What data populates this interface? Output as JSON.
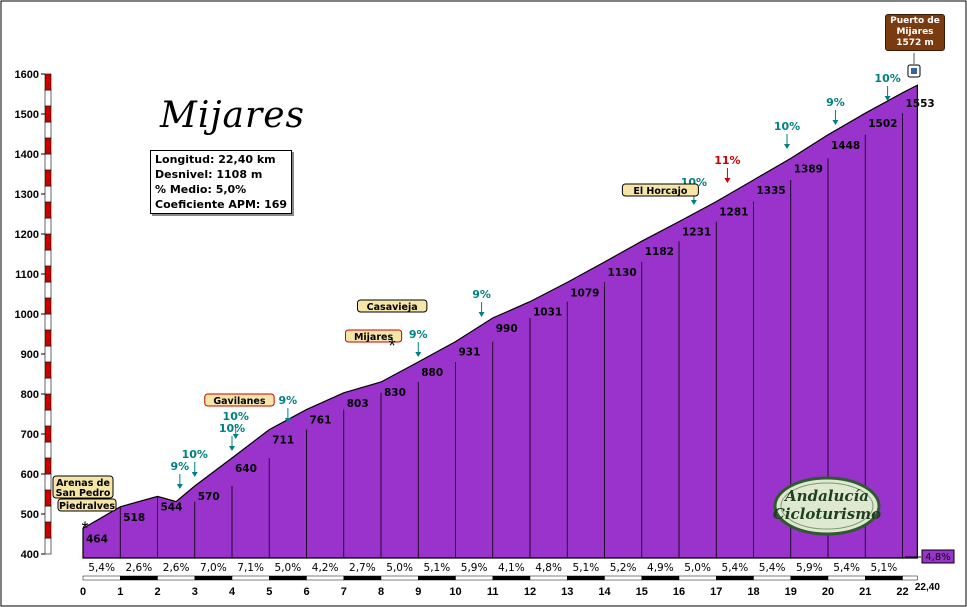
{
  "title": "Mijares",
  "info": {
    "longitud": "Longitud: 22,40 km",
    "desnivel": "Desnivel: 1108 m",
    "medio": "% Medio: 5,0%",
    "coef": "Coeficiente APM: 169"
  },
  "logo": {
    "line1": "Andalucía",
    "line2": "Cicloturismo"
  },
  "summit": {
    "line1": "Puerto de",
    "line2": "Mijares",
    "line3": "1572 m"
  },
  "colors": {
    "profile": "#9933cc",
    "axis_red": "#cc0000",
    "label_green": "#008080",
    "label_red": "#cc0000",
    "place_fill": "#f5e6a8",
    "summit_fill": "#7a3b10"
  },
  "chart_data": {
    "type": "area",
    "xlabel": "",
    "ylabel": "",
    "xlim": [
      0,
      22.4
    ],
    "ylim": [
      400,
      1600
    ],
    "x_ticks": [
      "0",
      "1",
      "2",
      "3",
      "4",
      "5",
      "6",
      "7",
      "8",
      "9",
      "10",
      "11",
      "12",
      "13",
      "14",
      "15",
      "16",
      "17",
      "18",
      "19",
      "20",
      "21",
      "22"
    ],
    "y_ticks": [
      "400",
      "500",
      "600",
      "700",
      "800",
      "900",
      "1000",
      "1100",
      "1200",
      "1300",
      "1400",
      "1500",
      "1600"
    ],
    "end_label": "22,40",
    "profile": {
      "x": [
        0,
        1,
        2,
        2.5,
        3,
        4,
        5,
        6,
        7,
        8,
        9,
        10,
        11,
        12,
        13,
        14,
        15,
        16,
        17,
        18,
        19,
        20,
        21,
        22,
        22.4
      ],
      "y": [
        464,
        518,
        544,
        531,
        570,
        640,
        711,
        761,
        803,
        830,
        880,
        931,
        990,
        1031,
        1079,
        1130,
        1182,
        1231,
        1281,
        1335,
        1389,
        1448,
        1502,
        1553,
        1572
      ]
    },
    "km_labels": [
      {
        "x": 0,
        "y": 464,
        "label": "464"
      },
      {
        "x": 1,
        "y": 518,
        "label": "518"
      },
      {
        "x": 2,
        "y": 544,
        "label": "544"
      },
      {
        "x": 3,
        "y": 570,
        "label": "570"
      },
      {
        "x": 4,
        "y": 640,
        "label": "640"
      },
      {
        "x": 5,
        "y": 711,
        "label": "711"
      },
      {
        "x": 6,
        "y": 761,
        "label": "761"
      },
      {
        "x": 7,
        "y": 803,
        "label": "803"
      },
      {
        "x": 8,
        "y": 830,
        "label": "830"
      },
      {
        "x": 9,
        "y": 880,
        "label": "880"
      },
      {
        "x": 10,
        "y": 931,
        "label": "931"
      },
      {
        "x": 11,
        "y": 990,
        "label": "990"
      },
      {
        "x": 12,
        "y": 1031,
        "label": "1031"
      },
      {
        "x": 13,
        "y": 1079,
        "label": "1079"
      },
      {
        "x": 14,
        "y": 1130,
        "label": "1130"
      },
      {
        "x": 15,
        "y": 1182,
        "label": "1182"
      },
      {
        "x": 16,
        "y": 1231,
        "label": "1231"
      },
      {
        "x": 17,
        "y": 1281,
        "label": "1281"
      },
      {
        "x": 18,
        "y": 1335,
        "label": "1335"
      },
      {
        "x": 19,
        "y": 1389,
        "label": "1389"
      },
      {
        "x": 20,
        "y": 1448,
        "label": "1448"
      },
      {
        "x": 21,
        "y": 1502,
        "label": "1502"
      },
      {
        "x": 22,
        "y": 1553,
        "label": "1553"
      }
    ],
    "segment_pct": [
      "5,4%",
      "2,6%",
      "2,6%",
      "7,0%",
      "7,1%",
      "5,0%",
      "4,2%",
      "2,7%",
      "5,0%",
      "5,1%",
      "5,9%",
      "4,1%",
      "4,8%",
      "5,1%",
      "5,2%",
      "4,9%",
      "5,0%",
      "5,4%",
      "5,4%",
      "5,9%",
      "5,4%",
      "5,1%"
    ],
    "last_pct": "4,8%",
    "slope_marks": [
      {
        "x": 2.6,
        "y": 555,
        "label": "9%",
        "color": "green"
      },
      {
        "x": 3.0,
        "y": 585,
        "label": "10%",
        "color": "green"
      },
      {
        "x": 4.0,
        "y": 650,
        "label": "10%",
        "color": "green"
      },
      {
        "x": 4.1,
        "y": 680,
        "label": "10%",
        "color": "green"
      },
      {
        "x": 5.5,
        "y": 720,
        "label": "9%",
        "color": "green"
      },
      {
        "x": 9.0,
        "y": 885,
        "label": "9%",
        "color": "green"
      },
      {
        "x": 10.7,
        "y": 985,
        "label": "9%",
        "color": "green"
      },
      {
        "x": 16.4,
        "y": 1265,
        "label": "10%",
        "color": "green"
      },
      {
        "x": 17.3,
        "y": 1320,
        "label": "11%",
        "color": "red"
      },
      {
        "x": 18.9,
        "y": 1405,
        "label": "10%",
        "color": "green"
      },
      {
        "x": 20.2,
        "y": 1465,
        "label": "9%",
        "color": "green"
      },
      {
        "x": 21.6,
        "y": 1525,
        "label": "10%",
        "color": "green"
      }
    ],
    "places": [
      {
        "x": 0.0,
        "y": 464,
        "line1": "Arenas de",
        "line2": "San Pedro"
      },
      {
        "x": 0.0,
        "y": 464,
        "line1": "Piedralves",
        "line2": ""
      },
      {
        "x": 4.2,
        "y": 700,
        "line1": "Gavilanes",
        "line2": ""
      },
      {
        "x": 7.8,
        "y": 860,
        "line1": "Mijares",
        "line2": ""
      },
      {
        "x": 8.3,
        "y": 935,
        "line1": "Casavieja",
        "line2": ""
      },
      {
        "x": 15.5,
        "y": 1225,
        "line1": "El Horcajo",
        "line2": ""
      }
    ]
  }
}
